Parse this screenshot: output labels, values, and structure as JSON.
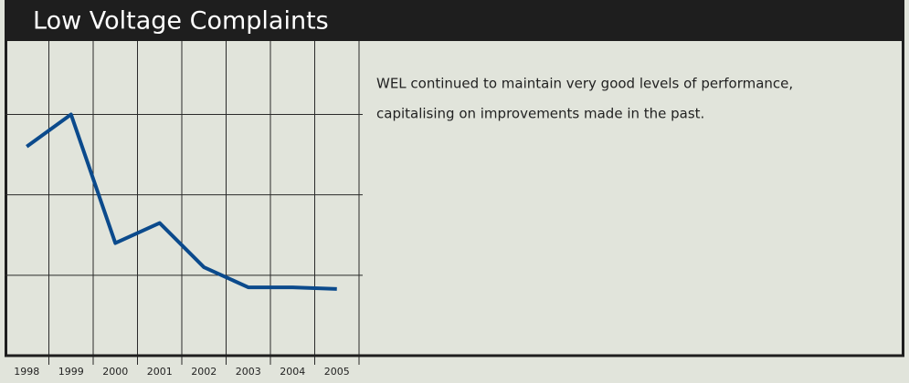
{
  "chart_data": {
    "type": "line",
    "title": "Low Voltage Complaints",
    "categories": [
      "1998",
      "1999",
      "2000",
      "2001",
      "2002",
      "2003",
      "2004",
      "2005"
    ],
    "series": [
      {
        "name": "Low Voltage Complaints",
        "color": "#0b4a8c",
        "values": [
          2.6,
          3.0,
          1.4,
          1.65,
          1.1,
          0.85,
          0.85,
          0.83
        ]
      }
    ],
    "ylim": [
      0,
      3.8
    ],
    "yticks": [
      1,
      2,
      3
    ],
    "grid": true,
    "text": [
      "WEL continued to maintain very good levels of performance,",
      "capitalising on improvements made in the past."
    ]
  }
}
